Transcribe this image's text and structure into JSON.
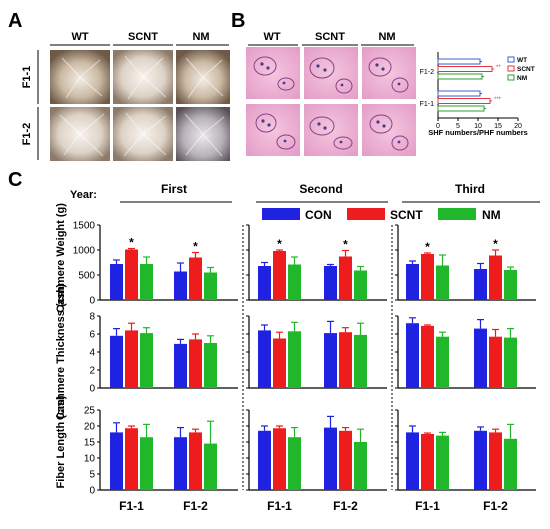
{
  "panels": {
    "A": {
      "letter": "A",
      "columns": [
        "WT",
        "SCNT",
        "NM"
      ],
      "rows": [
        "F1-1",
        "F1-2"
      ]
    },
    "B": {
      "letter": "B",
      "columns": [
        "WT",
        "SCNT",
        "NM"
      ],
      "inset_chart": {
        "type": "bar",
        "orientation": "horizontal",
        "categories": [
          "F1-2",
          "F1-1"
        ],
        "series": [
          {
            "name": "WT",
            "color": "#3a5fcd",
            "values": [
              10.5,
              10.5
            ]
          },
          {
            "name": "SCNT",
            "color": "#e8363c",
            "values": [
              13.5,
              13.0
            ]
          },
          {
            "name": "NM",
            "color": "#2ca02c",
            "values": [
              11.0,
              11.5
            ]
          }
        ],
        "significance": {
          "F1-2": "**",
          "F1-1": "***"
        },
        "xlabel": "SHF numbers/PHF numbers",
        "xticks": [
          "0",
          "5",
          "10",
          "15",
          "20"
        ],
        "xlim": [
          0,
          20
        ]
      }
    },
    "C": {
      "letter": "C",
      "year_label": "Year:",
      "years": [
        "First",
        "Second",
        "Third"
      ],
      "legend": [
        {
          "name": "CON",
          "color": "#1f22e0"
        },
        {
          "name": "SCNT",
          "color": "#ee1c1c"
        },
        {
          "name": "NM",
          "color": "#20b82a"
        }
      ],
      "groups": [
        "F1-1",
        "F1-2"
      ]
    }
  },
  "chart_data": [
    {
      "type": "bar",
      "ylabel": "Cashmere Weight (g)",
      "ylim": [
        0,
        1500
      ],
      "yticks": [
        "0",
        "500",
        "1000",
        "1500"
      ],
      "categories": [
        "F1-1",
        "F1-2"
      ],
      "years": {
        "First": {
          "CON": [
            {
              "v": 720,
              "e": 80
            },
            {
              "v": 570,
              "e": 170
            }
          ],
          "SCNT": [
            {
              "v": 1010,
              "e": 20
            },
            {
              "v": 850,
              "e": 100
            }
          ],
          "NM": [
            {
              "v": 720,
              "e": 140
            },
            {
              "v": 550,
              "e": 100
            }
          ],
          "stars": [
            "*",
            "*"
          ]
        },
        "Second": {
          "CON": [
            {
              "v": 680,
              "e": 70
            },
            {
              "v": 680,
              "e": 30
            }
          ],
          "SCNT": [
            {
              "v": 980,
              "e": 20
            },
            {
              "v": 870,
              "e": 120
            }
          ],
          "NM": [
            {
              "v": 710,
              "e": 150
            },
            {
              "v": 590,
              "e": 80
            }
          ],
          "stars": [
            "*",
            "*"
          ]
        },
        "Third": {
          "CON": [
            {
              "v": 720,
              "e": 60
            },
            {
              "v": 620,
              "e": 110
            }
          ],
          "SCNT": [
            {
              "v": 920,
              "e": 20
            },
            {
              "v": 890,
              "e": 110
            }
          ],
          "NM": [
            {
              "v": 690,
              "e": 210
            },
            {
              "v": 600,
              "e": 60
            }
          ],
          "stars": [
            "*",
            "*"
          ]
        }
      }
    },
    {
      "type": "bar",
      "ylabel": "Cashmere Thickness (cm)",
      "ylim": [
        0,
        8
      ],
      "yticks": [
        "0",
        "2",
        "4",
        "6",
        "8"
      ],
      "categories": [
        "F1-1",
        "F1-2"
      ],
      "years": {
        "First": {
          "CON": [
            {
              "v": 5.8,
              "e": 0.8
            },
            {
              "v": 4.9,
              "e": 0.5
            }
          ],
          "SCNT": [
            {
              "v": 6.4,
              "e": 0.8
            },
            {
              "v": 5.4,
              "e": 0.6
            }
          ],
          "NM": [
            {
              "v": 6.1,
              "e": 0.6
            },
            {
              "v": 5.0,
              "e": 0.8
            }
          ]
        },
        "Second": {
          "CON": [
            {
              "v": 6.4,
              "e": 0.6
            },
            {
              "v": 6.1,
              "e": 1.3
            }
          ],
          "SCNT": [
            {
              "v": 5.5,
              "e": 0.7
            },
            {
              "v": 6.2,
              "e": 0.5
            }
          ],
          "NM": [
            {
              "v": 6.3,
              "e": 1.0
            },
            {
              "v": 5.9,
              "e": 1.3
            }
          ]
        },
        "Third": {
          "CON": [
            {
              "v": 7.2,
              "e": 0.6
            },
            {
              "v": 6.6,
              "e": 1.0
            }
          ],
          "SCNT": [
            {
              "v": 6.9,
              "e": 0.1
            },
            {
              "v": 5.7,
              "e": 0.8
            }
          ],
          "NM": [
            {
              "v": 5.7,
              "e": 0.5
            },
            {
              "v": 5.6,
              "e": 1.0
            }
          ]
        }
      }
    },
    {
      "type": "bar",
      "ylabel": "Fiber Length (cm)",
      "ylim": [
        0,
        25
      ],
      "yticks": [
        "0",
        "5",
        "10",
        "15",
        "20",
        "25"
      ],
      "categories": [
        "F1-1",
        "F1-2"
      ],
      "years": {
        "First": {
          "CON": [
            {
              "v": 18,
              "e": 3
            },
            {
              "v": 16.5,
              "e": 3
            }
          ],
          "SCNT": [
            {
              "v": 19.3,
              "e": 0.7
            },
            {
              "v": 18,
              "e": 1
            }
          ],
          "NM": [
            {
              "v": 16.5,
              "e": 4
            },
            {
              "v": 14.5,
              "e": 7
            }
          ]
        },
        "Second": {
          "CON": [
            {
              "v": 18.5,
              "e": 1.5
            },
            {
              "v": 19.5,
              "e": 3.5
            }
          ],
          "SCNT": [
            {
              "v": 19.3,
              "e": 0.7
            },
            {
              "v": 18.5,
              "e": 1
            }
          ],
          "NM": [
            {
              "v": 16.5,
              "e": 3
            },
            {
              "v": 15,
              "e": 4
            }
          ]
        },
        "Third": {
          "CON": [
            {
              "v": 18,
              "e": 2
            },
            {
              "v": 18.5,
              "e": 1.2
            }
          ],
          "SCNT": [
            {
              "v": 17.5,
              "e": 0.3
            },
            {
              "v": 18,
              "e": 1
            }
          ],
          "NM": [
            {
              "v": 17,
              "e": 1
            },
            {
              "v": 16,
              "e": 4.5
            }
          ]
        }
      }
    }
  ]
}
